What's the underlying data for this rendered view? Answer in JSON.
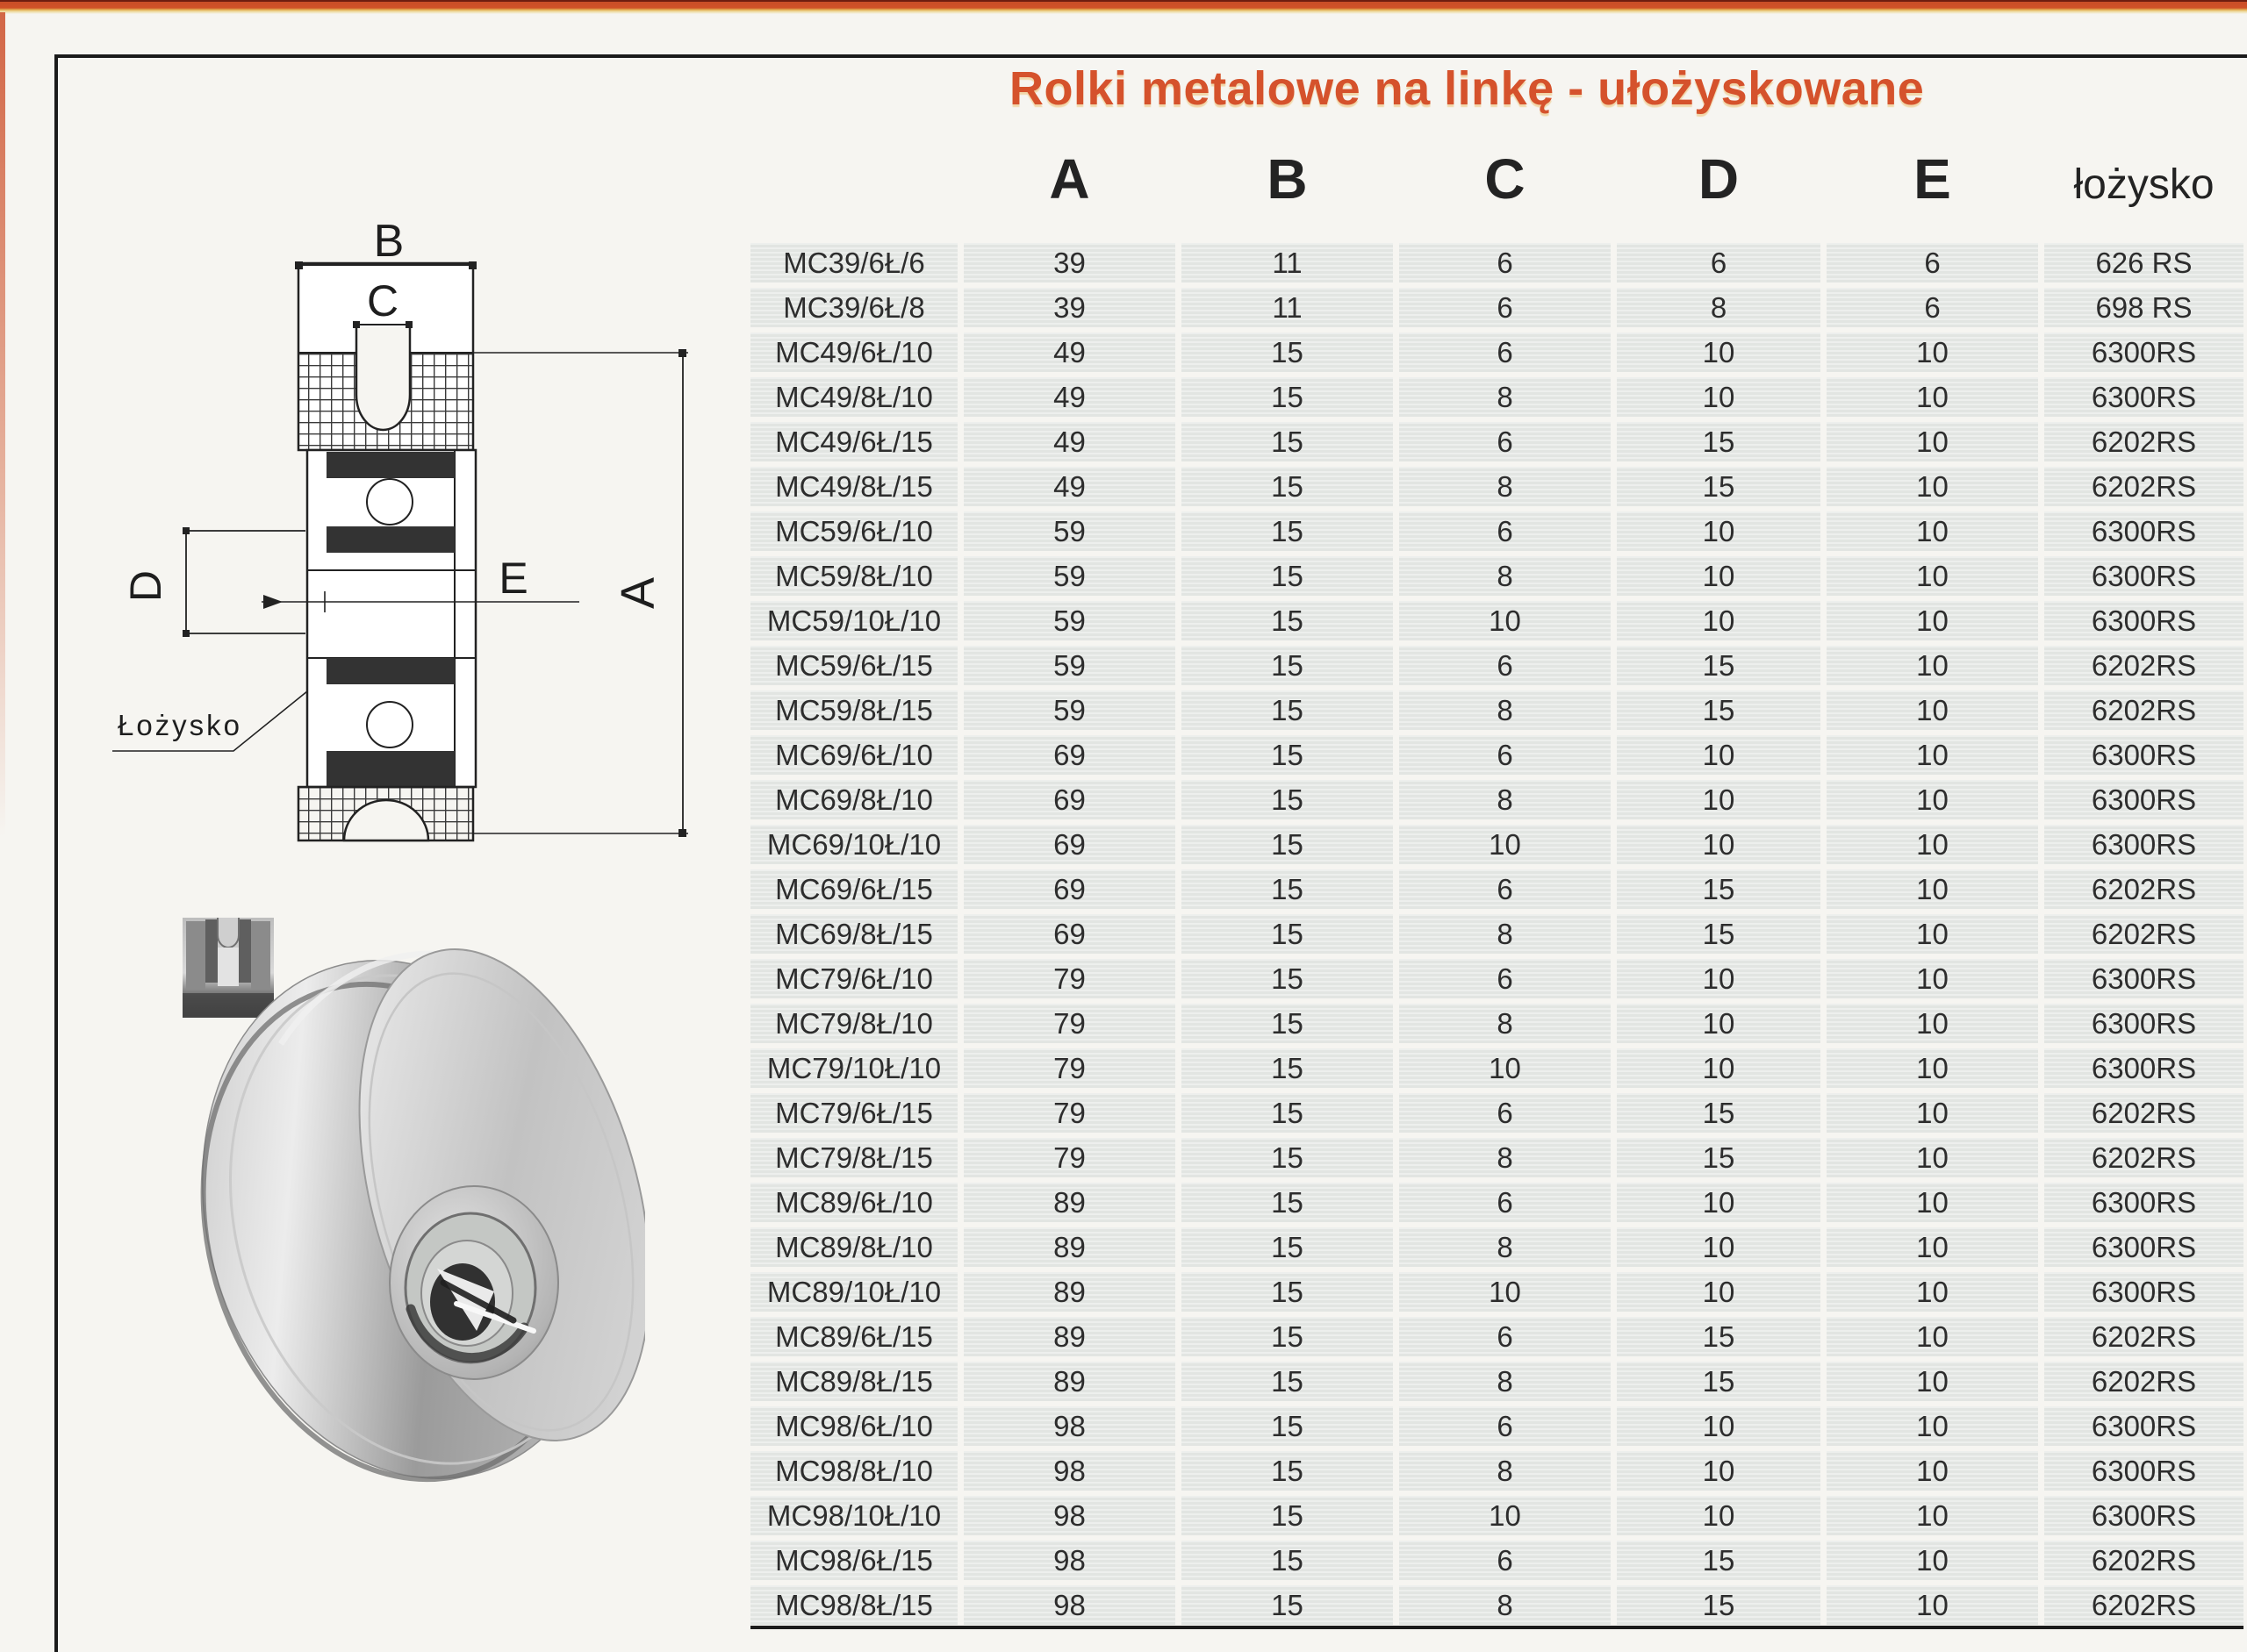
{
  "page": {
    "title": "Rolki metalowe na linkę - ułożyskowane"
  },
  "colors": {
    "title": "#d5522c",
    "top_band": "#d05128",
    "paper": "#f6f5f1",
    "row_gray": "#e7e9e7",
    "frame": "#1b1b1b",
    "table_text": "#2d2d2d"
  },
  "diagram": {
    "labels": {
      "A": "A",
      "B": "B",
      "C": "C",
      "D": "D",
      "E": "E"
    },
    "bearing": "Łożysko"
  },
  "table": {
    "headers": [
      "A",
      "B",
      "C",
      "D",
      "E",
      "łożysko"
    ],
    "rows": [
      [
        "MC39/6Ł/6",
        "39",
        "11",
        "6",
        "6",
        "6",
        "626 RS"
      ],
      [
        "MC39/6Ł/8",
        "39",
        "11",
        "6",
        "8",
        "6",
        "698 RS"
      ],
      [
        "MC49/6Ł/10",
        "49",
        "15",
        "6",
        "10",
        "10",
        "6300RS"
      ],
      [
        "MC49/8Ł/10",
        "49",
        "15",
        "8",
        "10",
        "10",
        "6300RS"
      ],
      [
        "MC49/6Ł/15",
        "49",
        "15",
        "6",
        "15",
        "10",
        "6202RS"
      ],
      [
        "MC49/8Ł/15",
        "49",
        "15",
        "8",
        "15",
        "10",
        "6202RS"
      ],
      [
        "MC59/6Ł/10",
        "59",
        "15",
        "6",
        "10",
        "10",
        "6300RS"
      ],
      [
        "MC59/8Ł/10",
        "59",
        "15",
        "8",
        "10",
        "10",
        "6300RS"
      ],
      [
        "MC59/10Ł/10",
        "59",
        "15",
        "10",
        "10",
        "10",
        "6300RS"
      ],
      [
        "MC59/6Ł/15",
        "59",
        "15",
        "6",
        "15",
        "10",
        "6202RS"
      ],
      [
        "MC59/8Ł/15",
        "59",
        "15",
        "8",
        "15",
        "10",
        "6202RS"
      ],
      [
        "MC69/6Ł/10",
        "69",
        "15",
        "6",
        "10",
        "10",
        "6300RS"
      ],
      [
        "MC69/8Ł/10",
        "69",
        "15",
        "8",
        "10",
        "10",
        "6300RS"
      ],
      [
        "MC69/10Ł/10",
        "69",
        "15",
        "10",
        "10",
        "10",
        "6300RS"
      ],
      [
        "MC69/6Ł/15",
        "69",
        "15",
        "6",
        "15",
        "10",
        "6202RS"
      ],
      [
        "MC69/8Ł/15",
        "69",
        "15",
        "8",
        "15",
        "10",
        "6202RS"
      ],
      [
        "MC79/6Ł/10",
        "79",
        "15",
        "6",
        "10",
        "10",
        "6300RS"
      ],
      [
        "MC79/8Ł/10",
        "79",
        "15",
        "8",
        "10",
        "10",
        "6300RS"
      ],
      [
        "MC79/10Ł/10",
        "79",
        "15",
        "10",
        "10",
        "10",
        "6300RS"
      ],
      [
        "MC79/6Ł/15",
        "79",
        "15",
        "6",
        "15",
        "10",
        "6202RS"
      ],
      [
        "MC79/8Ł/15",
        "79",
        "15",
        "8",
        "15",
        "10",
        "6202RS"
      ],
      [
        "MC89/6Ł/10",
        "89",
        "15",
        "6",
        "10",
        "10",
        "6300RS"
      ],
      [
        "MC89/8Ł/10",
        "89",
        "15",
        "8",
        "10",
        "10",
        "6300RS"
      ],
      [
        "MC89/10Ł/10",
        "89",
        "15",
        "10",
        "10",
        "10",
        "6300RS"
      ],
      [
        "MC89/6Ł/15",
        "89",
        "15",
        "6",
        "15",
        "10",
        "6202RS"
      ],
      [
        "MC89/8Ł/15",
        "89",
        "15",
        "8",
        "15",
        "10",
        "6202RS"
      ],
      [
        "MC98/6Ł/10",
        "98",
        "15",
        "6",
        "10",
        "10",
        "6300RS"
      ],
      [
        "MC98/8Ł/10",
        "98",
        "15",
        "8",
        "10",
        "10",
        "6300RS"
      ],
      [
        "MC98/10Ł/10",
        "98",
        "15",
        "10",
        "10",
        "10",
        "6300RS"
      ],
      [
        "MC98/6Ł/15",
        "98",
        "15",
        "6",
        "15",
        "10",
        "6202RS"
      ],
      [
        "MC98/8Ł/15",
        "98",
        "15",
        "8",
        "15",
        "10",
        "6202RS"
      ]
    ]
  }
}
